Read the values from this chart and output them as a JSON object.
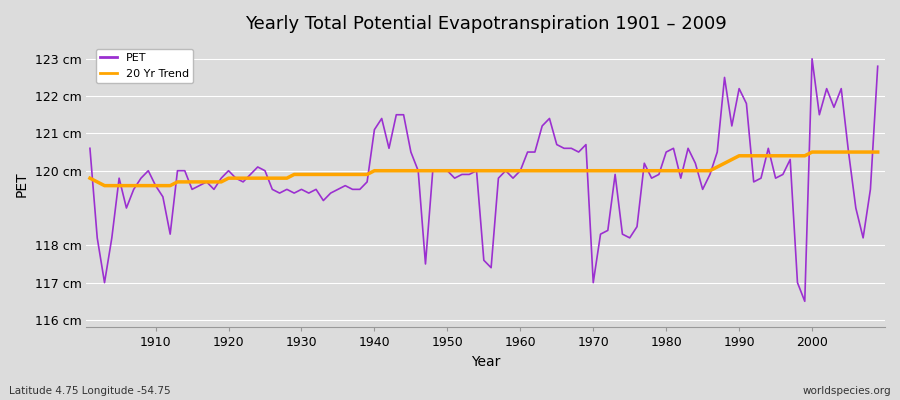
{
  "title": "Yearly Total Potential Evapotranspiration 1901 – 2009",
  "ylabel": "PET",
  "xlabel": "Year",
  "footnote_left": "Latitude 4.75 Longitude -54.75",
  "footnote_right": "worldspecies.org",
  "pet_color": "#9B30D0",
  "trend_color": "#FFA500",
  "ylim": [
    115.8,
    123.5
  ],
  "yticks": [
    116,
    117,
    118,
    120,
    121,
    122,
    123
  ],
  "ytick_labels": [
    "116 cm",
    "117 cm",
    "118 cm",
    "120 cm",
    "121 cm",
    "122 cm",
    "123 cm"
  ],
  "xlim": [
    1900.5,
    2010
  ],
  "xticks": [
    1910,
    1920,
    1930,
    1940,
    1950,
    1960,
    1970,
    1980,
    1990,
    2000
  ],
  "plot_bg_color": "#DCDCDC",
  "fig_bg_color": "#DCDCDC",
  "grid_color": "#FFFFFF",
  "years": [
    1901,
    1902,
    1903,
    1904,
    1905,
    1906,
    1907,
    1908,
    1909,
    1910,
    1911,
    1912,
    1913,
    1914,
    1915,
    1916,
    1917,
    1918,
    1919,
    1920,
    1921,
    1922,
    1923,
    1924,
    1925,
    1926,
    1927,
    1928,
    1929,
    1930,
    1931,
    1932,
    1933,
    1934,
    1935,
    1936,
    1937,
    1938,
    1939,
    1940,
    1941,
    1942,
    1943,
    1944,
    1945,
    1946,
    1947,
    1948,
    1949,
    1950,
    1951,
    1952,
    1953,
    1954,
    1955,
    1956,
    1957,
    1958,
    1959,
    1960,
    1961,
    1962,
    1963,
    1964,
    1965,
    1966,
    1967,
    1968,
    1969,
    1970,
    1971,
    1972,
    1973,
    1974,
    1975,
    1976,
    1977,
    1978,
    1979,
    1980,
    1981,
    1982,
    1983,
    1984,
    1985,
    1986,
    1987,
    1988,
    1989,
    1990,
    1991,
    1992,
    1993,
    1994,
    1995,
    1996,
    1997,
    1998,
    1999,
    2000,
    2001,
    2002,
    2003,
    2004,
    2005,
    2006,
    2007,
    2008,
    2009
  ],
  "pet": [
    120.6,
    118.2,
    117.0,
    118.2,
    119.8,
    119.0,
    119.5,
    119.8,
    120.0,
    119.6,
    119.3,
    118.3,
    120.0,
    120.0,
    119.5,
    119.6,
    119.7,
    119.5,
    119.8,
    120.0,
    119.8,
    119.7,
    119.9,
    120.1,
    120.0,
    119.5,
    119.4,
    119.5,
    119.4,
    119.5,
    119.4,
    119.5,
    119.2,
    119.4,
    119.5,
    119.6,
    119.5,
    119.5,
    119.7,
    121.1,
    121.4,
    120.6,
    121.5,
    121.5,
    120.5,
    120.0,
    117.5,
    120.0,
    120.0,
    120.0,
    119.8,
    119.9,
    119.9,
    120.0,
    117.6,
    117.4,
    119.8,
    120.0,
    119.8,
    120.0,
    120.5,
    120.5,
    121.2,
    121.4,
    120.7,
    120.6,
    120.6,
    120.5,
    120.7,
    117.0,
    118.3,
    118.4,
    119.9,
    118.3,
    118.2,
    118.5,
    120.2,
    119.8,
    119.9,
    120.5,
    120.6,
    119.8,
    120.6,
    120.2,
    119.5,
    119.9,
    120.5,
    122.5,
    121.2,
    122.2,
    121.8,
    119.7,
    119.8,
    120.6,
    119.8,
    119.9,
    120.3,
    117.0,
    116.5,
    123.0,
    121.5,
    122.2,
    121.7,
    122.2,
    120.5,
    119.0,
    118.2,
    119.5,
    122.8
  ],
  "trend": [
    119.8,
    119.7,
    119.6,
    119.6,
    119.6,
    119.6,
    119.6,
    119.6,
    119.6,
    119.6,
    119.6,
    119.6,
    119.7,
    119.7,
    119.7,
    119.7,
    119.7,
    119.7,
    119.7,
    119.8,
    119.8,
    119.8,
    119.8,
    119.8,
    119.8,
    119.8,
    119.8,
    119.8,
    119.9,
    119.9,
    119.9,
    119.9,
    119.9,
    119.9,
    119.9,
    119.9,
    119.9,
    119.9,
    119.9,
    120.0,
    120.0,
    120.0,
    120.0,
    120.0,
    120.0,
    120.0,
    120.0,
    120.0,
    120.0,
    120.0,
    120.0,
    120.0,
    120.0,
    120.0,
    120.0,
    120.0,
    120.0,
    120.0,
    120.0,
    120.0,
    120.0,
    120.0,
    120.0,
    120.0,
    120.0,
    120.0,
    120.0,
    120.0,
    120.0,
    120.0,
    120.0,
    120.0,
    120.0,
    120.0,
    120.0,
    120.0,
    120.0,
    120.0,
    120.0,
    120.0,
    120.0,
    120.0,
    120.0,
    120.0,
    120.0,
    120.0,
    120.1,
    120.2,
    120.3,
    120.4,
    120.4,
    120.4,
    120.4,
    120.4,
    120.4,
    120.4,
    120.4,
    120.4,
    120.4,
    120.5,
    120.5,
    120.5,
    120.5,
    120.5,
    120.5,
    120.5,
    120.5,
    120.5,
    120.5
  ],
  "legend_pet": "PET",
  "legend_trend": "20 Yr Trend"
}
